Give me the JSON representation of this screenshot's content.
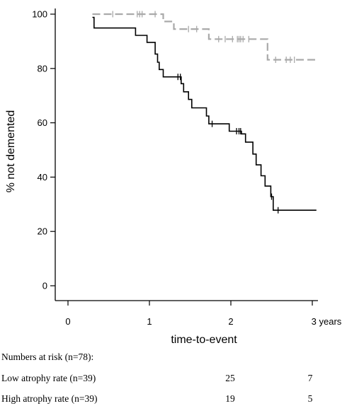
{
  "chart_data": {
    "type": "line",
    "xlabel": "time-to-event",
    "ylabel": "% not demented",
    "xlim": [
      0,
      3
    ],
    "ylim": [
      0,
      100
    ],
    "x_ticks": [
      "0",
      "1",
      "2",
      "3 years"
    ],
    "y_ticks": [
      "0",
      "20",
      "40",
      "60",
      "80",
      "100"
    ],
    "grid": false,
    "legend": "none",
    "series": [
      {
        "style": "dashed",
        "color": "#aaaaaa",
        "steps": [
          [
            0.3,
            100
          ],
          [
            1.17,
            97.3
          ],
          [
            1.3,
            94.5
          ],
          [
            1.73,
            90.8
          ],
          [
            2.45,
            83.2
          ],
          [
            3.05,
            83.2
          ]
        ],
        "censored": [
          [
            0.55,
            100
          ],
          [
            0.85,
            100
          ],
          [
            0.88,
            100
          ],
          [
            0.91,
            100
          ],
          [
            1.07,
            100
          ],
          [
            1.48,
            94.5
          ],
          [
            1.58,
            94.5
          ],
          [
            1.85,
            90.8
          ],
          [
            1.93,
            90.8
          ],
          [
            2.02,
            90.8
          ],
          [
            2.08,
            90.8
          ],
          [
            2.1,
            90.8
          ],
          [
            2.12,
            90.8
          ],
          [
            2.15,
            90.8
          ],
          [
            2.22,
            90.8
          ],
          [
            2.55,
            83.2
          ],
          [
            2.68,
            83.2
          ],
          [
            2.73,
            83.2
          ],
          [
            2.78,
            83.2
          ]
        ]
      },
      {
        "style": "solid",
        "color": "#000000",
        "steps": [
          [
            0.3,
            98.8
          ],
          [
            0.32,
            94.9
          ],
          [
            0.83,
            92.2
          ],
          [
            0.97,
            89.6
          ],
          [
            1.07,
            85.3
          ],
          [
            1.1,
            82.3
          ],
          [
            1.12,
            79.6
          ],
          [
            1.17,
            76.9
          ],
          [
            1.38,
            76.9
          ],
          [
            1.39,
            74.4
          ],
          [
            1.42,
            71.4
          ],
          [
            1.48,
            68.6
          ],
          [
            1.52,
            65.5
          ],
          [
            1.7,
            62.5
          ],
          [
            1.73,
            59.6
          ],
          [
            1.98,
            56.9
          ],
          [
            2.13,
            55.9
          ],
          [
            2.18,
            52.9
          ],
          [
            2.27,
            48.5
          ],
          [
            2.31,
            44.5
          ],
          [
            2.37,
            40.5
          ],
          [
            2.42,
            36.7
          ],
          [
            2.49,
            32.8
          ],
          [
            2.52,
            27.8
          ],
          [
            3.05,
            27.8
          ]
        ],
        "censored": [
          [
            1.35,
            76.9
          ],
          [
            1.38,
            76.9
          ],
          [
            1.77,
            59.6
          ],
          [
            2.07,
            56.9
          ],
          [
            2.1,
            56.9
          ],
          [
            2.12,
            56.9
          ],
          [
            2.5,
            32.8
          ],
          [
            2.58,
            27.8
          ]
        ]
      }
    ]
  },
  "risk_table": {
    "title": "Numbers at risk (n=78):",
    "rows": [
      {
        "label": "Low atrophy rate (n=39)",
        "values": [
          "25",
          "7"
        ]
      },
      {
        "label": "High atrophy rate (n=39)",
        "values": [
          "19",
          "5"
        ]
      }
    ]
  }
}
